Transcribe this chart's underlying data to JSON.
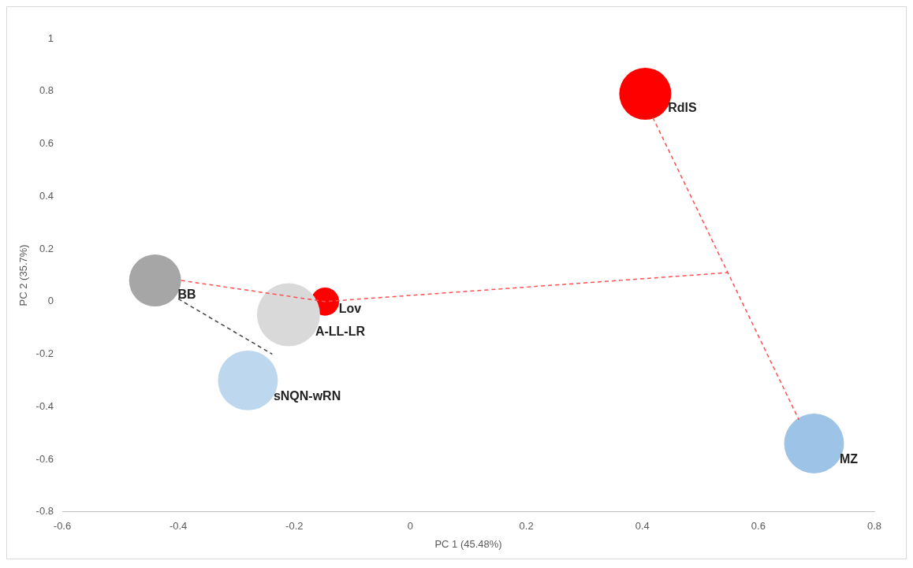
{
  "chart_data": {
    "type": "bubble",
    "xlabel": "PC 1 (45.48%)",
    "ylabel": "PC 2 (35.7%)",
    "xlim": [
      -0.6,
      0.8
    ],
    "xticks": [
      -0.6,
      -0.4,
      -0.2,
      0,
      0.2,
      0.4,
      0.6,
      0.8
    ],
    "ylim": [
      -0.8,
      1
    ],
    "yticks": [
      -0.8,
      -0.6,
      -0.4,
      -0.2,
      0,
      0.2,
      0.4,
      0.6,
      0.8,
      1
    ],
    "grid": false,
    "legend": false,
    "series": [
      {
        "type": "line",
        "color": "#ff5050",
        "line_style": "dashed",
        "marker": "none",
        "x": [
          -0.395,
          -0.147,
          0.547
        ],
        "values": [
          0.08,
          0,
          0.11
        ]
      },
      {
        "type": "line",
        "color": "#ff5050",
        "line_style": "dashed",
        "marker": "none",
        "x": [
          0.418,
          0.67
        ],
        "values": [
          0.7,
          -0.45
        ]
      },
      {
        "type": "line",
        "color": "#404040",
        "line_style": "dashed",
        "marker": "none",
        "x": [
          -0.4,
          -0.238
        ],
        "values": [
          0.01,
          -0.2
        ]
      },
      {
        "name": "BB",
        "color": "#a6a6a6",
        "x": [
          -0.44
        ],
        "values": [
          0.08
        ],
        "sizes": [
          0.68
        ]
      },
      {
        "name": "A-LL-LR",
        "color": "#d9d9d9",
        "x": [
          -0.21
        ],
        "values": [
          -0.05
        ],
        "sizes": [
          1
        ]
      },
      {
        "name": "Lov",
        "color": "#ff0000",
        "x": [
          -0.147
        ],
        "values": [
          0
        ],
        "sizes": [
          0.2
        ]
      },
      {
        "name": "sNQN-wRN",
        "color": "#bdd7ee",
        "x": [
          -0.28
        ],
        "values": [
          -0.3
        ],
        "sizes": [
          0.9
        ]
      },
      {
        "name": "RdlS",
        "color": "#ff0000",
        "x": [
          0.405
        ],
        "values": [
          0.79
        ],
        "sizes": [
          0.68
        ]
      },
      {
        "name": "MZ",
        "color": "#9dc3e6",
        "x": [
          0.696
        ],
        "values": [
          -0.54
        ],
        "sizes": [
          0.9
        ]
      }
    ]
  }
}
